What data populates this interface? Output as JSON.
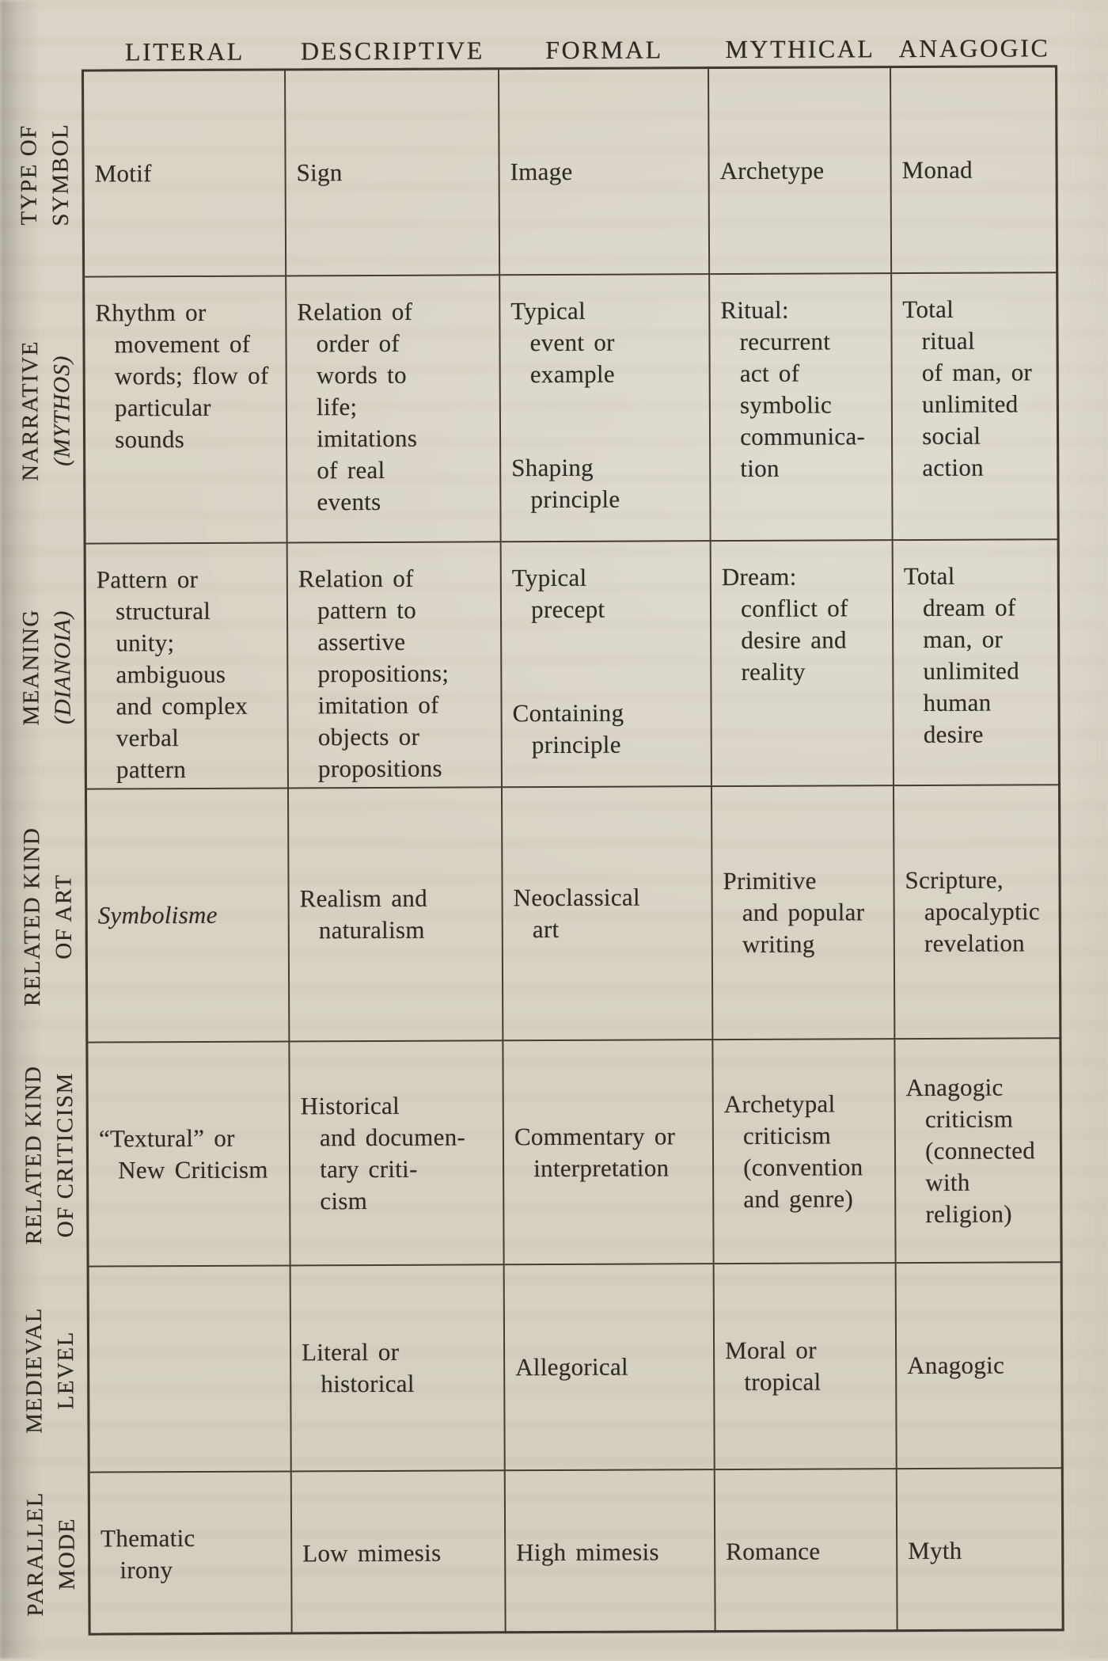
{
  "colors": {
    "paper": "#d8d3c5",
    "ink": "#2e2a24",
    "rule": "#3e382e"
  },
  "document": {
    "column_headers": [
      "LITERAL",
      "DESCRIPTIVE",
      "FORMAL",
      "MYTHICAL",
      "ANAGOGIC"
    ],
    "rows": [
      {
        "label": {
          "line1": "TYPE OF",
          "line2": "SYMBOL"
        },
        "cells": {
          "literal": "Motif",
          "descriptive": "Sign",
          "formal": "Image",
          "mythical": "Archetype",
          "anagogic": "Monad"
        }
      },
      {
        "label": {
          "line1": "NARRATIVE",
          "line2": "(MYTHOS)"
        },
        "cells": {
          "literal": "Rhythm or\n  movement of\n  words; flow of\n  particular\n  sounds",
          "descriptive": "Relation of\n  order of\n  words to\n  life;\n  imitations\n  of real\n  events",
          "formal_top": "Typical\n  event or\n  example",
          "formal_bottom": "Shaping\n  principle",
          "mythical": "Ritual:\n  recurrent\n  act of\n  symbolic\n  communica-\n  tion",
          "anagogic": "Total\n  ritual\n  of man, or\n  unlimited\n  social\n  action"
        }
      },
      {
        "label": {
          "line1": "MEANING",
          "line2": "(DIANOIA)"
        },
        "cells": {
          "literal": "Pattern or\n  structural\n  unity;\n  ambiguous\n  and complex\n  verbal\n  pattern",
          "descriptive": "Relation of\n  pattern to\n  assertive\n  propositions;\n  imitation of\n  objects or\n  propositions",
          "formal_top": "Typical\n  precept",
          "formal_bottom": "Containing\n  principle",
          "mythical": "Dream:\n  conflict of\n  desire and\n  reality",
          "anagogic": "Total\n  dream of\n  man, or\n  unlimited\n  human\n  desire"
        }
      },
      {
        "label": {
          "line1": "RELATED KIND",
          "line2": "OF ART"
        },
        "cells": {
          "literal": "Symbolisme",
          "descriptive": "Realism and\n  naturalism",
          "formal": "Neoclassical\n  art",
          "mythical": "Primitive\n  and popular\n  writing",
          "anagogic": "Scripture,\n  apocalyptic\n  revelation"
        }
      },
      {
        "label": {
          "line1": "RELATED KIND",
          "line2": "OF CRITICISM"
        },
        "cells": {
          "literal": "“Textural” or\n  New Criticism",
          "descriptive": "Historical\n  and documen-\n  tary criti-\n  cism",
          "formal": "Commentary or\n  interpretation",
          "mythical": "Archetypal\n  criticism\n  (convention\n  and genre)",
          "anagogic": "Anagogic\n  criticism\n  (connected\n  with\n  religion)"
        }
      },
      {
        "label": {
          "line1": "MEDIEVAL",
          "line2": "LEVEL"
        },
        "cells": {
          "literal": "",
          "descriptive": "Literal or\n  historical",
          "formal": "Allegorical",
          "mythical": "Moral or\n  tropical",
          "anagogic": "Anagogic"
        }
      },
      {
        "label": {
          "line1": "PARALLEL",
          "line2": "MODE"
        },
        "cells": {
          "literal": "Thematic\n  irony",
          "descriptive": "Low mimesis",
          "formal": "High mimesis",
          "mythical": "Romance",
          "anagogic": "Myth"
        }
      }
    ]
  }
}
